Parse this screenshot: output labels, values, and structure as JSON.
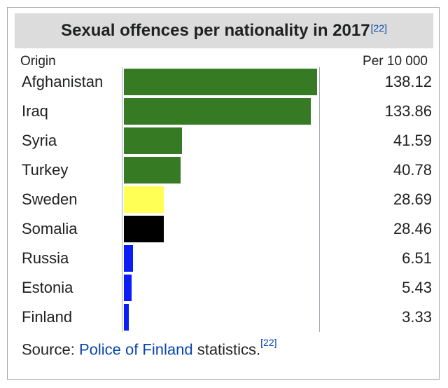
{
  "title": "Sexual offences per nationality in 2017",
  "title_ref": "[22]",
  "headers": {
    "origin": "Origin",
    "unit": "Per 10 000"
  },
  "source": {
    "prefix": "Source: ",
    "link": "Police of Finland",
    "suffix": " statistics.",
    "ref": "[22]"
  },
  "colors": {
    "green": "#367a23",
    "yellow": "#ffff55",
    "black": "#000000",
    "blue": "#0a1ef5"
  },
  "chart_data": {
    "type": "bar",
    "orientation": "horizontal",
    "title": "Sexual offences per nationality in 2017",
    "xlabel": "Per 10 000",
    "ylabel": "Origin",
    "xlim": [
      0,
      138.12
    ],
    "categories": [
      "Afghanistan",
      "Iraq",
      "Syria",
      "Turkey",
      "Sweden",
      "Somalia",
      "Russia",
      "Estonia",
      "Finland"
    ],
    "values": [
      138.12,
      133.86,
      41.59,
      40.78,
      28.69,
      28.46,
      6.51,
      5.43,
      3.33
    ],
    "value_labels": [
      "138.12",
      "133.86",
      "41.59",
      "40.78",
      "28.69",
      "28.46",
      "6.51",
      "5.43",
      "3.33"
    ],
    "bar_colors": [
      "#367a23",
      "#367a23",
      "#367a23",
      "#367a23",
      "#ffff55",
      "#000000",
      "#0a1ef5",
      "#0a1ef5",
      "#0a1ef5"
    ]
  }
}
